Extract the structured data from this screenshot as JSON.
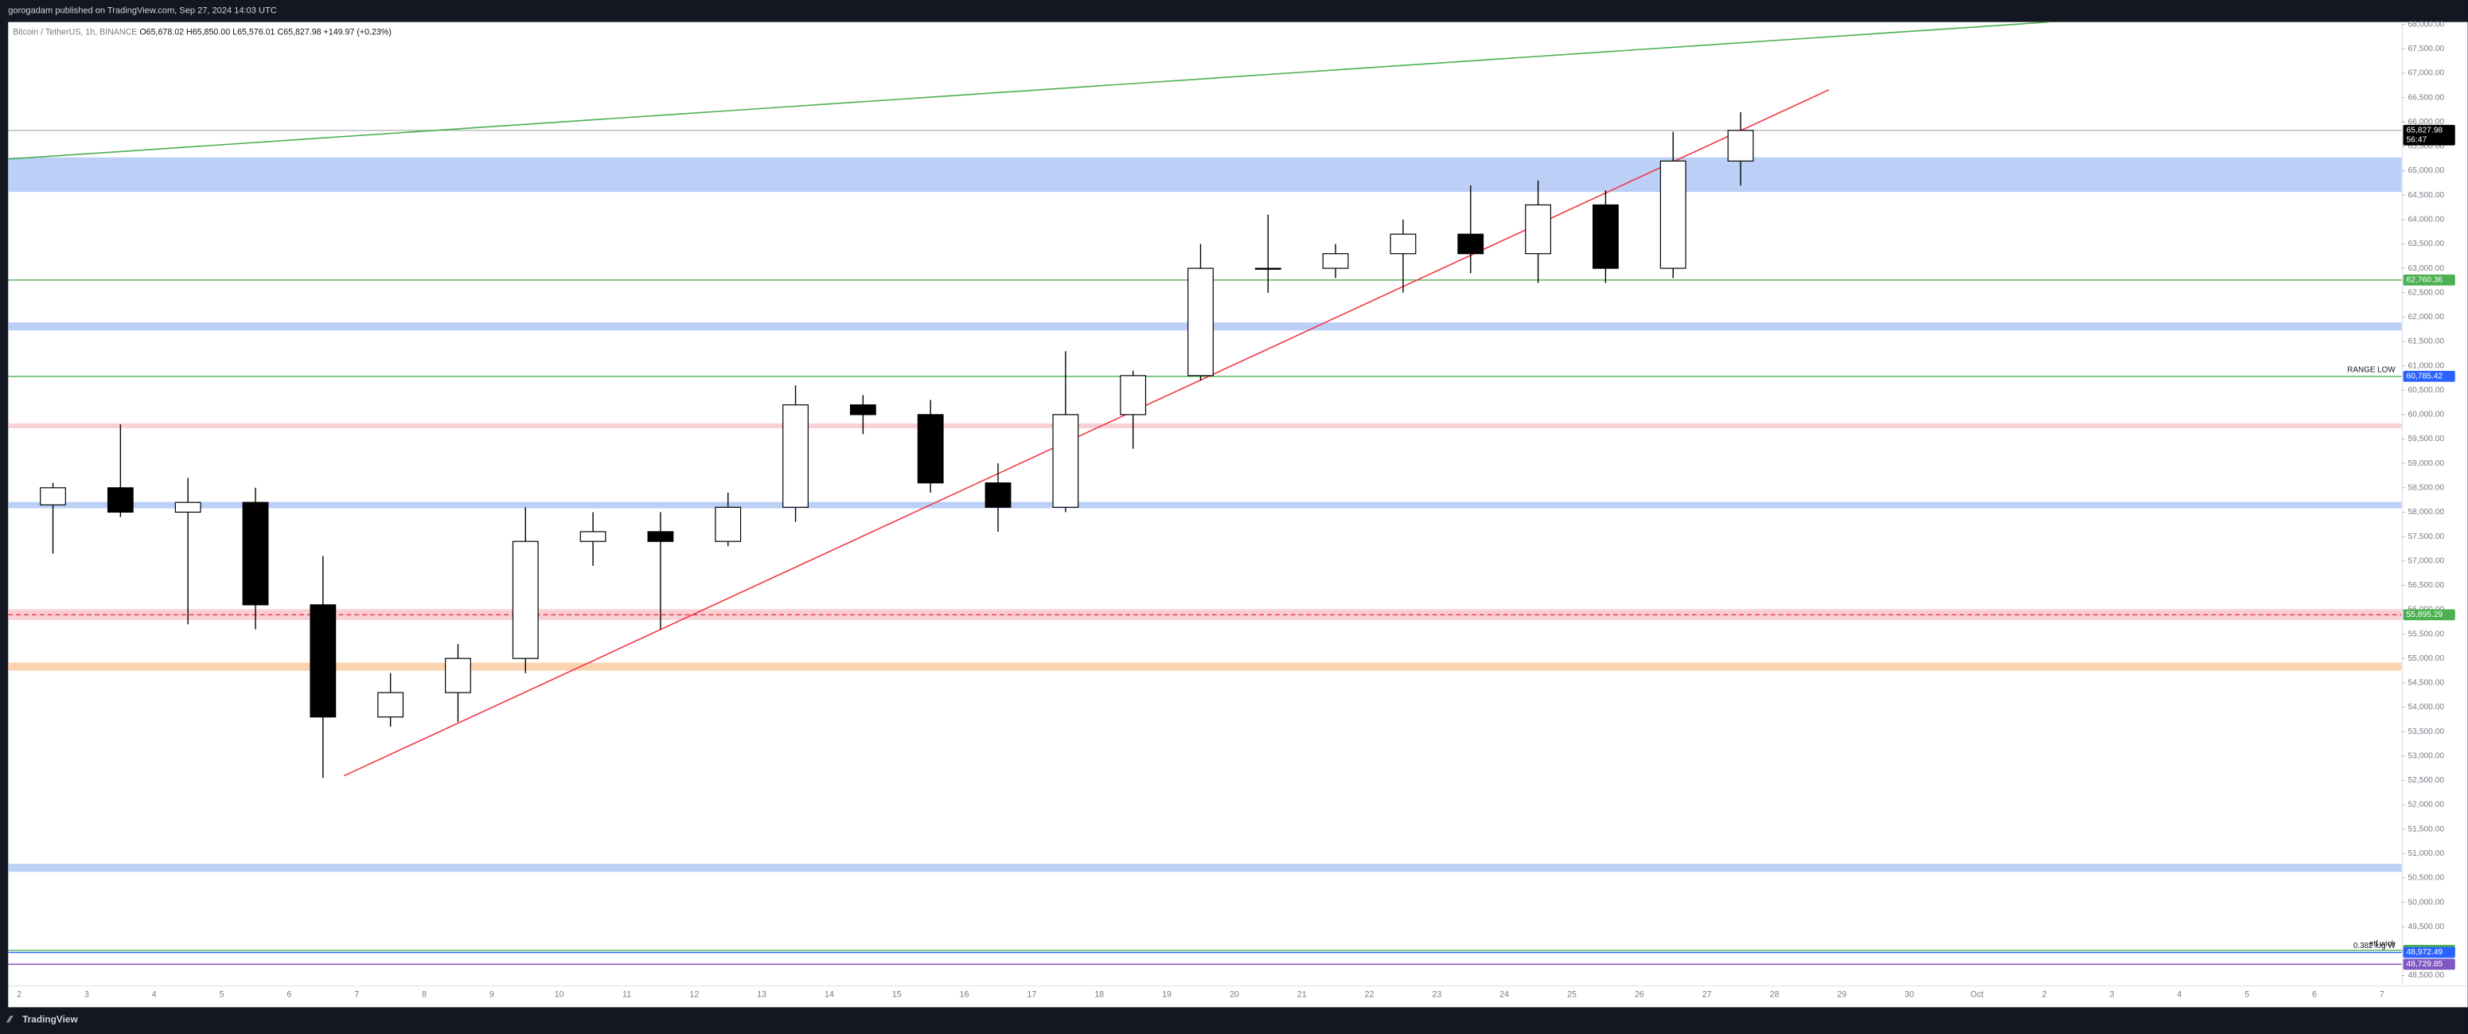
{
  "header": {
    "published": "gorogadam published on TradingView.com, Sep 27, 2024 14:03 UTC",
    "brand": "TradingView"
  },
  "chart_data": {
    "type": "candlestick",
    "title": "Bitcoin / TetherUS, 1h, BINANCE",
    "last_bar": [
      {
        "key": "O",
        "value": 65678.02,
        "label": "65,678.02"
      },
      {
        "key": "H",
        "value": 65850.0,
        "label": "65,850.00"
      },
      {
        "key": "L",
        "value": 65576.01,
        "label": "65,576.01"
      },
      {
        "key": "C",
        "value": 65827.98,
        "label": "65,827.98"
      }
    ],
    "change": "+149.97 (+0.23%)",
    "categories": [
      "2",
      "3",
      "4",
      "5",
      "6",
      "7",
      "8",
      "9",
      "10",
      "11",
      "12",
      "13",
      "14",
      "15",
      "16",
      "17",
      "18",
      "19",
      "20",
      "21",
      "22",
      "23",
      "24",
      "25",
      "26",
      "27",
      "28",
      "29",
      "30",
      "Oct",
      "2",
      "3",
      "4",
      "5",
      "6",
      "7"
    ],
    "open": [
      58150,
      58500,
      58000,
      58200,
      56100,
      53800,
      54300,
      55000,
      57400,
      57600,
      57400,
      58100,
      60200,
      60000,
      58600,
      58100,
      60000,
      60800,
      63000,
      63000,
      63300,
      63700,
      63300,
      64300,
      63000,
      65200,
      null,
      null,
      null,
      null,
      null,
      null,
      null,
      null,
      null,
      null
    ],
    "high": [
      58600,
      59800,
      58700,
      58500,
      57100,
      54700,
      55300,
      58100,
      58000,
      58000,
      58400,
      60600,
      60400,
      60300,
      59000,
      61300,
      60900,
      63500,
      64100,
      63500,
      64000,
      64700,
      64800,
      64600,
      65800,
      66200,
      null,
      null,
      null,
      null,
      null,
      null,
      null,
      null,
      null,
      null
    ],
    "low": [
      57150,
      57900,
      55700,
      55600,
      52550,
      53600,
      53700,
      54700,
      56900,
      55600,
      57300,
      57800,
      59600,
      58400,
      57600,
      58000,
      59300,
      60700,
      62500,
      62800,
      62500,
      62900,
      62700,
      62700,
      62800,
      64700,
      null,
      null,
      null,
      null,
      null,
      null,
      null,
      null,
      null,
      null
    ],
    "close": [
      58500,
      58000,
      58200,
      56100,
      53800,
      54300,
      55000,
      57400,
      57600,
      57400,
      58100,
      60200,
      60000,
      58600,
      58100,
      60000,
      60800,
      63000,
      63000,
      63300,
      63700,
      63300,
      64300,
      63000,
      65200,
      65827.98,
      null,
      null,
      null,
      null,
      null,
      null,
      null,
      null,
      null,
      null
    ],
    "up_color": "#ffffff",
    "down_color": "#000000",
    "ylim": [
      48300,
      68050
    ],
    "yticks": [
      {
        "value": 48500,
        "label": "48,500.00"
      },
      {
        "value": 49000,
        "label": "49,000.00"
      },
      {
        "value": 49500,
        "label": "49,500.00"
      },
      {
        "value": 50000,
        "label": "50,000.00"
      },
      {
        "value": 50500,
        "label": "50,500.00"
      },
      {
        "value": 51000,
        "label": "51,000.00"
      },
      {
        "value": 51500,
        "label": "51,500.00"
      },
      {
        "value": 52000,
        "label": "52,000.00"
      },
      {
        "value": 52500,
        "label": "52,500.00"
      },
      {
        "value": 53000,
        "label": "53,000.00"
      },
      {
        "value": 53500,
        "label": "53,500.00"
      },
      {
        "value": 54000,
        "label": "54,000.00"
      },
      {
        "value": 54500,
        "label": "54,500.00"
      },
      {
        "value": 55000,
        "label": "55,000.00"
      },
      {
        "value": 55500,
        "label": "55,500.00"
      },
      {
        "value": 56000,
        "label": "56,000.00"
      },
      {
        "value": 56500,
        "label": "56,500.00"
      },
      {
        "value": 57000,
        "label": "57,000.00"
      },
      {
        "value": 57500,
        "label": "57,500.00"
      },
      {
        "value": 58000,
        "label": "58,000.00"
      },
      {
        "value": 58500,
        "label": "58,500.00"
      },
      {
        "value": 59000,
        "label": "59,000.00"
      },
      {
        "value": 59500,
        "label": "59,500.00"
      },
      {
        "value": 60000,
        "label": "60,000.00"
      },
      {
        "value": 60500,
        "label": "60,500.00"
      },
      {
        "value": 61000,
        "label": "61,000.00"
      },
      {
        "value": 61500,
        "label": "61,500.00"
      },
      {
        "value": 62000,
        "label": "62,000.00"
      },
      {
        "value": 62500,
        "label": "62,500.00"
      },
      {
        "value": 63000,
        "label": "63,000.00"
      },
      {
        "value": 63500,
        "label": "63,500.00"
      },
      {
        "value": 64000,
        "label": "64,000.00"
      },
      {
        "value": 64500,
        "label": "64,500.00"
      },
      {
        "value": 65000,
        "label": "65,000.00"
      },
      {
        "value": 65500,
        "label": "65,500.00"
      },
      {
        "value": 66000,
        "label": "66,000.00"
      },
      {
        "value": 66500,
        "label": "66,500.00"
      },
      {
        "value": 67000,
        "label": "67,000.00"
      },
      {
        "value": 67500,
        "label": "67,500.00"
      },
      {
        "value": 68000,
        "label": "68,000.00"
      }
    ],
    "zones": [
      {
        "from": 64565,
        "to": 65275,
        "color": "#bcd0f7"
      },
      {
        "from": 61725,
        "to": 61890,
        "color": "#bcd0f7"
      },
      {
        "from": 59720,
        "to": 59820,
        "color": "#f9d0d4"
      },
      {
        "from": 58080,
        "to": 58210,
        "color": "#bcd0f7"
      },
      {
        "from": 55790,
        "to": 56010,
        "color": "#f9d0d4"
      },
      {
        "from": 54750,
        "to": 54915,
        "color": "#fcd3b0"
      },
      {
        "from": 50625,
        "to": 50790,
        "color": "#bcd0f7"
      }
    ],
    "levels": [
      {
        "value": 65827.98,
        "label": "65,827.98",
        "color": "#b2b5be",
        "tag": "#000000",
        "dash": false
      },
      {
        "value": 62760.36,
        "label": "62,760.36",
        "color": "#4caf50",
        "tag": "#4caf50",
        "dash": false
      },
      {
        "value": 60785.42,
        "label": "60,785.42",
        "color": "#4caf50",
        "tag": "#2962ff",
        "dash": false,
        "name": "RANGE LOW"
      },
      {
        "value": 55895.29,
        "label": "55,895.29",
        "color": "#f23645",
        "tag": "#4caf50",
        "dash": true
      },
      {
        "value": 49014.13,
        "label": "49,014.13",
        "color": "#4caf50",
        "tag": "#4caf50",
        "dash": false,
        "name": "etf wick"
      },
      {
        "value": 48972.49,
        "label": "48,972.49",
        "color": "#2962ff",
        "tag": "#2962ff",
        "dash": false,
        "name": "0.382 log W"
      },
      {
        "value": 48729.85,
        "label": "48,729.85",
        "color": "#7e57c2",
        "tag": "#7e57c2",
        "dash": false
      }
    ],
    "countdown": "56:47",
    "trendlines": [
      {
        "x": [
          4.81,
          26.81
        ],
        "y": [
          52593,
          66662
        ],
        "color": "#f23645"
      },
      {
        "x": [
          -0.16,
          30.07
        ],
        "y": [
          65240,
          68050
        ],
        "color": "#4caf50"
      }
    ]
  }
}
